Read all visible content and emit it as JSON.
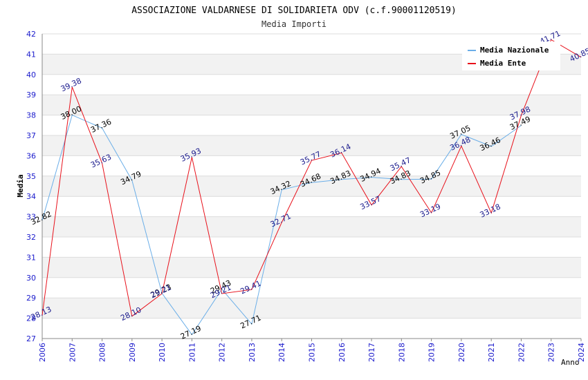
{
  "chart_data": {
    "type": "line",
    "title": "ASSOCIAZIONE VALDARNESE DI SOLIDARIETA ODV (c.f.90001120519)",
    "subtitle": "Media Importi",
    "xlabel": "Anno",
    "ylabel": "Media",
    "ylim": [
      27,
      42
    ],
    "yticks": [
      "27",
      "28",
      "29",
      "30",
      "31",
      "32",
      "33",
      "34",
      "35",
      "36",
      "37",
      "38",
      "39",
      "40",
      "41",
      "42"
    ],
    "xticks": [
      "2006",
      "2007",
      "2008",
      "2009",
      "2010",
      "2011",
      "2012",
      "2013",
      "2014",
      "2015",
      "2016",
      "2017",
      "2018",
      "2019",
      "2020",
      "2021",
      "2022",
      "2023",
      "2024"
    ],
    "grid": true,
    "legend_position": "top-right",
    "series": [
      {
        "name": "Media Nazionale",
        "color": "#6aaee8",
        "label_color": "#000000",
        "points": [
          {
            "x": 2006,
            "y": 32.82,
            "label": "32.82"
          },
          {
            "x": 2007,
            "y": 38.0,
            "label": "38.00"
          },
          {
            "x": 2008,
            "y": 37.36,
            "label": "37.36"
          },
          {
            "x": 2009,
            "y": 34.79,
            "label": "34.79"
          },
          {
            "x": 2010,
            "y": 29.23,
            "label": "29.23"
          },
          {
            "x": 2011,
            "y": 27.19,
            "label": "27.19"
          },
          {
            "x": 2012,
            "y": 29.43,
            "label": "29.43"
          },
          {
            "x": 2013,
            "y": 27.71,
            "label": "27.71"
          },
          {
            "x": 2014,
            "y": 34.32,
            "label": "34.32"
          },
          {
            "x": 2015,
            "y": 34.68,
            "label": "34.68"
          },
          {
            "x": 2016,
            "y": 34.83,
            "label": "34.83"
          },
          {
            "x": 2017,
            "y": 34.94,
            "label": "34.94"
          },
          {
            "x": 2018,
            "y": 34.83,
            "label": "34.83"
          },
          {
            "x": 2019,
            "y": 34.85,
            "label": "34.85"
          },
          {
            "x": 2020,
            "y": 37.05,
            "label": "37.05"
          },
          {
            "x": 2021,
            "y": 36.46,
            "label": "36.46"
          },
          {
            "x": 2022,
            "y": 37.49,
            "label": "37.49"
          }
        ]
      },
      {
        "name": "Media Ente",
        "color": "#e8101a",
        "label_color": "#1a1a8c",
        "points": [
          {
            "x": 2006,
            "y": 28.13,
            "label": "28.13"
          },
          {
            "x": 2007,
            "y": 39.38,
            "label": "39.38"
          },
          {
            "x": 2008,
            "y": 35.63,
            "label": "35.63"
          },
          {
            "x": 2009,
            "y": 28.1,
            "label": "28.10"
          },
          {
            "x": 2010,
            "y": 29.21,
            "label": "29.21"
          },
          {
            "x": 2011,
            "y": 35.93,
            "label": "35.93"
          },
          {
            "x": 2012,
            "y": 29.21,
            "label": "29.21"
          },
          {
            "x": 2013,
            "y": 29.41,
            "label": "29.41"
          },
          {
            "x": 2014,
            "y": 32.71,
            "label": "32.71"
          },
          {
            "x": 2015,
            "y": 35.77,
            "label": "35.77"
          },
          {
            "x": 2016,
            "y": 36.14,
            "label": "36.14"
          },
          {
            "x": 2017,
            "y": 33.57,
            "label": "33.57"
          },
          {
            "x": 2018,
            "y": 35.47,
            "label": "35.47"
          },
          {
            "x": 2019,
            "y": 33.19,
            "label": "33.19"
          },
          {
            "x": 2020,
            "y": 36.48,
            "label": "36.48"
          },
          {
            "x": 2021,
            "y": 33.18,
            "label": "33.18"
          },
          {
            "x": 2022,
            "y": 37.98,
            "label": "37.98"
          },
          {
            "x": 2023,
            "y": 41.71,
            "label": "41.71"
          },
          {
            "x": 2024,
            "y": 40.85,
            "label": "40.85"
          }
        ]
      }
    ],
    "colors": {
      "axis_text": "#1a1acc",
      "band": "#f2f2f2",
      "grid": "#dcdcdc",
      "axis": "#888888"
    }
  }
}
